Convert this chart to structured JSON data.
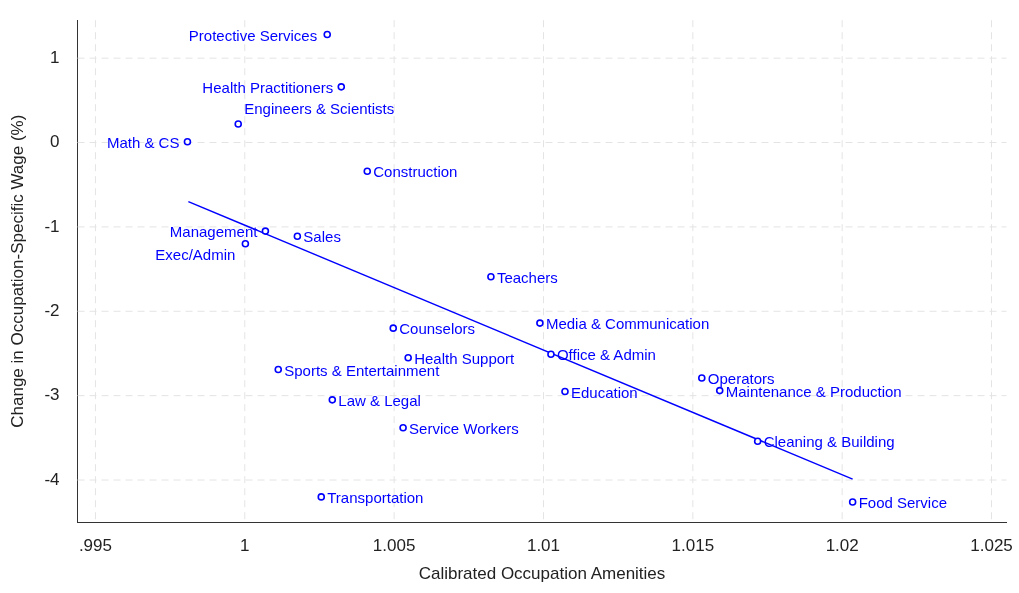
{
  "chart_data": {
    "type": "scatter",
    "xlabel": "Calibrated Occupation Amenities",
    "ylabel": "Change in Occupation-Specific Wage (%)",
    "xlim": [
      0.9944,
      1.0255
    ],
    "ylim": [
      -4.5,
      1.45
    ],
    "xticks": [
      {
        "value": 0.995,
        "label": ".995"
      },
      1,
      1.005,
      1.01,
      1.015,
      1.02,
      1.025
    ],
    "yticks": [
      -4,
      -3,
      -2,
      -1,
      0,
      1
    ],
    "grid": true,
    "legend": false,
    "series": [
      {
        "type": "scatter",
        "marker": "circle",
        "color": "#0000ff",
        "x": [
          1.00276,
          1.00323,
          0.99978,
          0.99808,
          1.0041,
          1.00069,
          1.00002,
          1.00176,
          1.00824,
          1.00497,
          1.00988,
          1.00547,
          1.01025,
          1.00112,
          1.0153,
          1.0159,
          1.01072,
          1.00293,
          1.0053,
          1.01717,
          1.00256,
          1.02035
        ],
        "values": [
          1.28,
          0.66,
          0.22,
          0.01,
          -0.34,
          -1.05,
          -1.2,
          -1.11,
          -1.59,
          -2.2,
          -2.14,
          -2.55,
          -2.51,
          -2.69,
          -2.79,
          -2.94,
          -2.95,
          -3.05,
          -3.38,
          -3.54,
          -4.2,
          -4.26
        ]
      },
      {
        "type": "line",
        "marker": "none",
        "color": "#0000ff",
        "x": [
          0.99811,
          1.02035
        ],
        "values": [
          -0.7,
          -3.99
        ]
      }
    ],
    "annotations": [
      {
        "text": "Protective Services",
        "x": 1.00276,
        "y": 1.28
      },
      {
        "text": "Health Practitioners",
        "x": 1.00323,
        "y": 0.66
      },
      {
        "text": "Engineers & Scientists",
        "x": 0.99978,
        "y": 0.22
      },
      {
        "text": "Math & CS",
        "x": 0.99808,
        "y": 0.01
      },
      {
        "text": "Construction",
        "x": 1.0041,
        "y": -0.34
      },
      {
        "text": "Management",
        "x": 1.00069,
        "y": -1.05
      },
      {
        "text": "Exec/Admin",
        "x": 1.00002,
        "y": -1.2
      },
      {
        "text": "Sales",
        "x": 1.00176,
        "y": -1.11
      },
      {
        "text": "Teachers",
        "x": 1.00824,
        "y": -1.59
      },
      {
        "text": "Counselors",
        "x": 1.00497,
        "y": -2.2
      },
      {
        "text": "Media & Communication",
        "x": 1.00988,
        "y": -2.14
      },
      {
        "text": "Health Support",
        "x": 1.00547,
        "y": -2.55
      },
      {
        "text": "Office & Admin",
        "x": 1.01025,
        "y": -2.51
      },
      {
        "text": "Sports & Entertainment",
        "x": 1.00112,
        "y": -2.69
      },
      {
        "text": "Operators",
        "x": 1.0153,
        "y": -2.79
      },
      {
        "text": "Maintenance & Production",
        "x": 1.0159,
        "y": -2.94
      },
      {
        "text": "Education",
        "x": 1.01072,
        "y": -2.95
      },
      {
        "text": "Law & Legal",
        "x": 1.00293,
        "y": -3.05
      },
      {
        "text": "Service Workers",
        "x": 1.0053,
        "y": -3.38
      },
      {
        "text": "Cleaning & Building",
        "x": 1.01717,
        "y": -3.54
      },
      {
        "text": "Transportation",
        "x": 1.00256,
        "y": -4.2
      },
      {
        "text": "Food Service",
        "x": 1.02035,
        "y": -4.26
      }
    ]
  }
}
